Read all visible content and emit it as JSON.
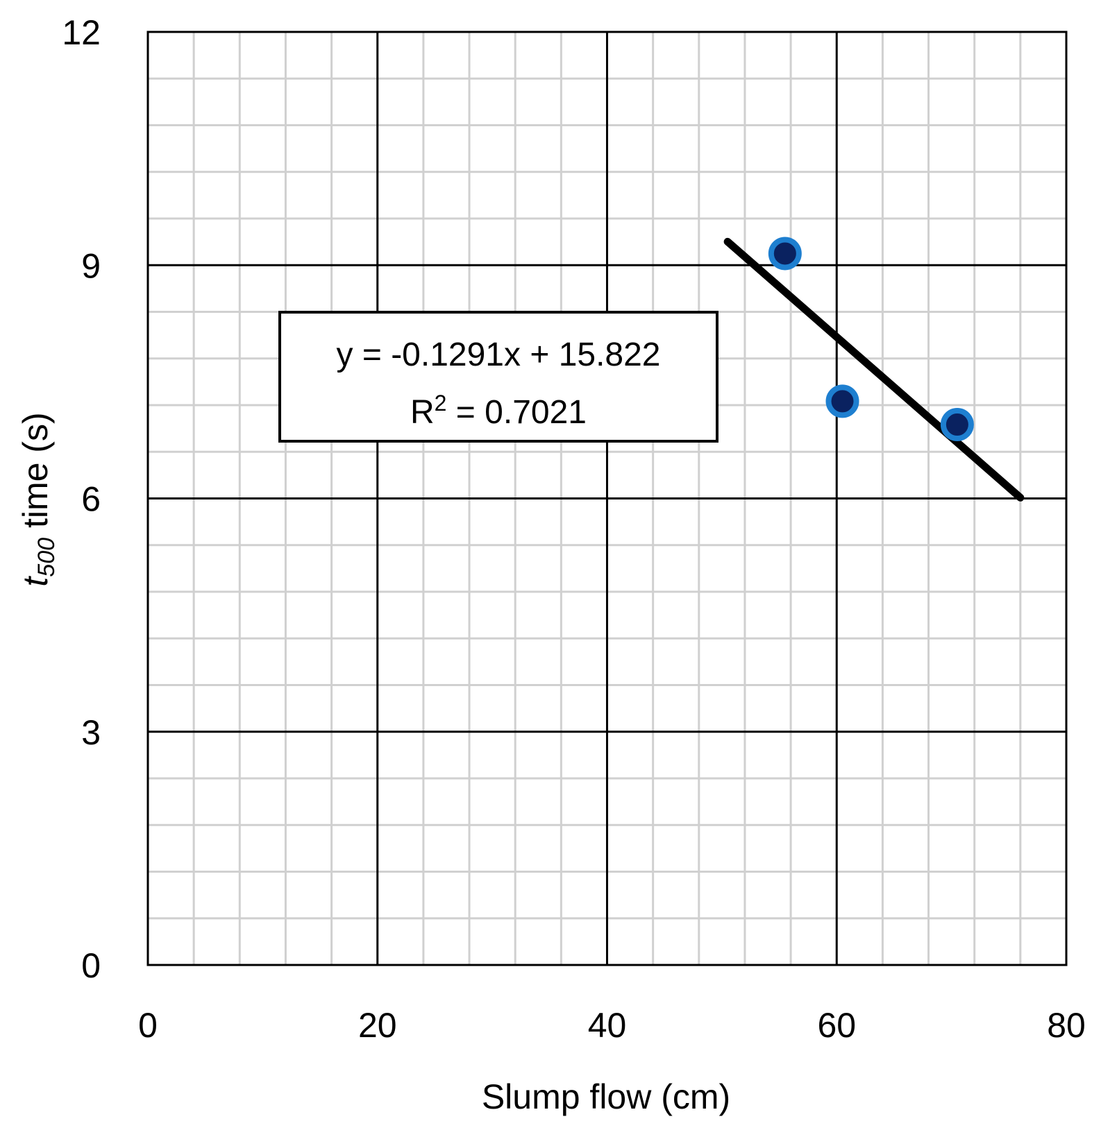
{
  "chart_data": {
    "type": "scatter",
    "xlabel": "Slump flow (cm)",
    "ylabel": {
      "var": "t",
      "subscript": "500",
      "rest": " time (s)"
    },
    "xlim": [
      0,
      80
    ],
    "ylim": [
      0,
      12
    ],
    "x_ticks": [
      "0",
      "20",
      "40",
      "60",
      "80"
    ],
    "y_ticks": [
      "0",
      "3",
      "6",
      "9",
      "12"
    ],
    "x_major_step": 20,
    "y_major_step": 3,
    "x_minor_step": 4,
    "y_minor_step": 0.6,
    "grid": true,
    "points": [
      {
        "x": 55.5,
        "y": 9.15
      },
      {
        "x": 60.5,
        "y": 7.25
      },
      {
        "x": 70.5,
        "y": 6.95
      }
    ],
    "trendline": {
      "slope": -0.1291,
      "intercept": 15.822,
      "x_range": [
        50.5,
        76
      ]
    },
    "annotation": {
      "line1": "y = -0.1291x + 15.822",
      "line2_prefix": "R",
      "line2_sup": "2",
      "line2_rest": " = 0.7021"
    },
    "colors": {
      "marker_fill": "#0a2260",
      "marker_edge": "#1e7fd0",
      "trendline": "#000000",
      "major_grid": "#000000",
      "minor_grid": "#d0d0d0"
    }
  }
}
